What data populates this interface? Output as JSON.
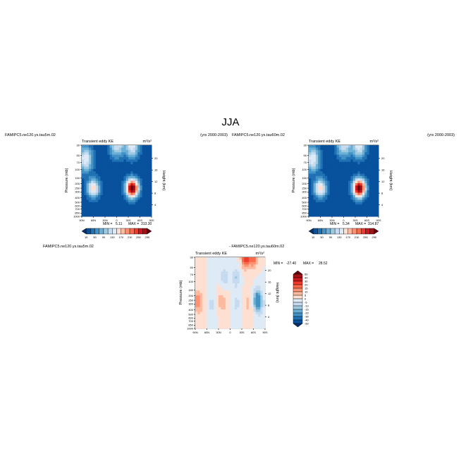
{
  "figure": {
    "title": "JJA",
    "colors": {
      "diverging": [
        "#08306b",
        "#08519c",
        "#2171b5",
        "#4292c6",
        "#6baed6",
        "#9ecae1",
        "#c6dbef",
        "#deebf7",
        "#fee0d2",
        "#fcbba1",
        "#fc9272",
        "#fb6a4a",
        "#ef3b2c",
        "#cb181d",
        "#a50f15",
        "#67000d"
      ]
    }
  },
  "chart_data": [
    {
      "type": "heatmap",
      "case": "FAMIPC5.ne120.ys.tau5m.02",
      "years": "(yrs 2000-2003)",
      "title": "Transient eddy KE",
      "units": "m²/s²",
      "ylabel": "Pressure (mb)",
      "ylabel_right": "Height (km)",
      "x_ticks": [
        "90N",
        "60N",
        "30N",
        "0",
        "30S",
        "60S",
        "90S"
      ],
      "y_ticks": [
        "30",
        "50",
        "70",
        "100",
        "150",
        "200",
        "250",
        "300",
        "400",
        "500",
        "600",
        "700",
        "850",
        "1000"
      ],
      "y_right_ticks": [
        "20",
        "16",
        "12",
        "8",
        "4"
      ],
      "min_label": "MIN =",
      "min": "5.11",
      "max_label": "MAX =",
      "max": "313.30",
      "colorbar_labels": [
        "10",
        "50",
        "90",
        "130",
        "170",
        "210",
        "250",
        "290"
      ],
      "features": [
        {
          "lat": 60,
          "p": 250,
          "value": 170
        },
        {
          "lat": -40,
          "p": 250,
          "value": 313
        },
        {
          "lat": 0,
          "p": 30,
          "value": 130
        },
        {
          "lat": -40,
          "p": 30,
          "value": 150
        },
        {
          "lat": 80,
          "p": 60,
          "value": 150
        }
      ]
    },
    {
      "type": "heatmap",
      "case": "FAMIPC5.ne120.ys.tau60m.02",
      "years": "(yrs 2000-2003)",
      "title": "Transient eddy KE",
      "units": "m²/s²",
      "ylabel": "Pressure (mb)",
      "ylabel_right": "Height (km)",
      "x_ticks": [
        "90N",
        "60N",
        "30N",
        "0",
        "30S",
        "60S",
        "90S"
      ],
      "y_ticks": [
        "30",
        "50",
        "70",
        "100",
        "150",
        "200",
        "250",
        "300",
        "400",
        "500",
        "600",
        "700",
        "850",
        "1000"
      ],
      "y_right_ticks": [
        "20",
        "16",
        "12",
        "8",
        "4"
      ],
      "min_label": "MIN =",
      "min": "5.34",
      "max_label": "MAX =",
      "max": "314.87",
      "colorbar_labels": [
        "10",
        "50",
        "90",
        "130",
        "170",
        "210",
        "250",
        "290"
      ],
      "features": [
        {
          "lat": 60,
          "p": 250,
          "value": 170
        },
        {
          "lat": -40,
          "p": 250,
          "value": 315
        },
        {
          "lat": 0,
          "p": 30,
          "value": 130
        },
        {
          "lat": -40,
          "p": 30,
          "value": 150
        },
        {
          "lat": 80,
          "p": 60,
          "value": 150
        }
      ]
    },
    {
      "type": "heatmap",
      "case": "FAMIPC5.ne120.ys.tau5m.02",
      "case_diff": "- FAMIPC5.ne120.ys.tau60m.02",
      "title": "Transient eddy KE",
      "units": "m²/s²",
      "ylabel": "Pressure (mb)",
      "ylabel_right": "Height (km)",
      "x_ticks": [
        "90N",
        "60N",
        "30N",
        "0",
        "30S",
        "60S",
        "90S"
      ],
      "y_ticks": [
        "30",
        "50",
        "70",
        "100",
        "150",
        "200",
        "250",
        "300",
        "400",
        "500",
        "600",
        "700",
        "850",
        "1000"
      ],
      "y_right_ticks": [
        "20",
        "16",
        "12",
        "8",
        "4"
      ],
      "min_label": "MIN =",
      "min": "-27.40",
      "max_label": "MAX =",
      "max": "28.52",
      "colorbar_labels": [
        "50",
        "40",
        "30",
        "20",
        "15",
        "10",
        "5",
        "0",
        "-5",
        "-10",
        "-15",
        "-20",
        "-30",
        "-40",
        "-50"
      ],
      "features": [
        {
          "lat": -40,
          "p": 30,
          "value": 28
        },
        {
          "lat": -60,
          "p": 30,
          "value": 20
        },
        {
          "lat": 85,
          "p": 250,
          "value": 10
        },
        {
          "lat": 30,
          "p": 250,
          "value": 5
        },
        {
          "lat": -70,
          "p": 250,
          "value": -27
        },
        {
          "lat": 15,
          "p": 80,
          "value": -10
        },
        {
          "lat": -15,
          "p": 80,
          "value": -10
        }
      ]
    }
  ]
}
